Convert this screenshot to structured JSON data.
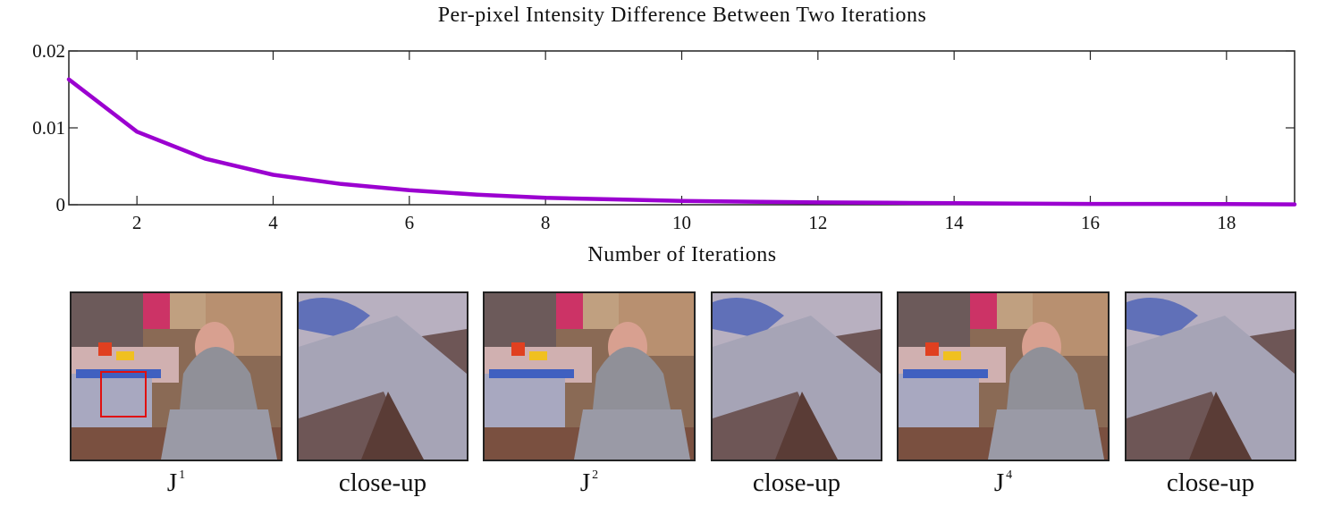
{
  "chart_data": {
    "type": "line",
    "title": "Per-pixel Intensity Difference Between Two Iterations",
    "xlabel": "Number of Iterations",
    "ylabel": "",
    "xlim": [
      1,
      19
    ],
    "ylim": [
      0,
      0.02
    ],
    "x_ticks": [
      2,
      4,
      6,
      8,
      10,
      12,
      14,
      16,
      18
    ],
    "y_ticks": [
      0,
      0.01,
      0.02
    ],
    "y_tick_labels": [
      "0",
      "0.01",
      "0.02"
    ],
    "grid": false,
    "series": [
      {
        "color": "#9b00d0",
        "x": [
          1,
          2,
          3,
          4,
          5,
          6,
          7,
          8,
          9,
          10,
          11,
          12,
          13,
          14,
          15,
          16,
          17,
          18,
          19
        ],
        "y": [
          0.0163,
          0.0095,
          0.006,
          0.0039,
          0.0027,
          0.0019,
          0.0013,
          0.0009,
          0.0007,
          0.0005,
          0.0004,
          0.0003,
          0.00025,
          0.0002,
          0.00015,
          0.0001,
          0.0001,
          8e-05,
          5e-05
        ]
      }
    ]
  },
  "figure_panels": [
    {
      "kind": "full-image",
      "label_main": "J",
      "label_sup": "1",
      "close_up_box_color": "#e01010"
    },
    {
      "kind": "close-up",
      "label_main": "close-up",
      "label_sup": ""
    },
    {
      "kind": "full-image",
      "label_main": "J",
      "label_sup": "2"
    },
    {
      "kind": "close-up",
      "label_main": "close-up",
      "label_sup": ""
    },
    {
      "kind": "full-image",
      "label_main": "J",
      "label_sup": "4"
    },
    {
      "kind": "close-up",
      "label_main": "close-up",
      "label_sup": ""
    }
  ]
}
